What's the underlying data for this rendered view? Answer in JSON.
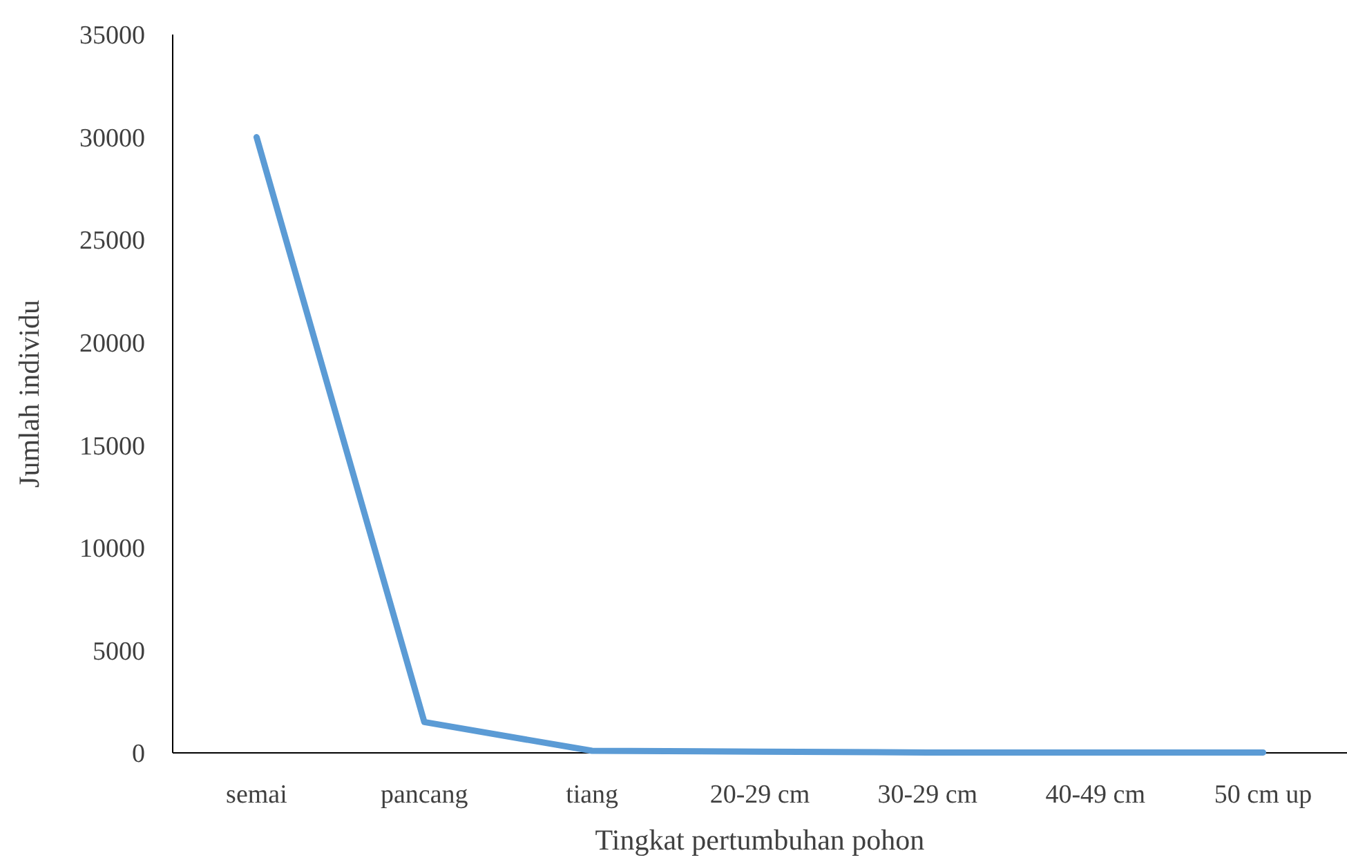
{
  "chart_data": {
    "type": "line",
    "xlabel": "Tingkat pertumbuhan pohon",
    "ylabel": "Jumlah individu",
    "categories": [
      "semai",
      "pancang",
      "tiang",
      "20-29 cm",
      "30-29 cm",
      "40-49 cm",
      "50 cm up"
    ],
    "series": [
      {
        "color": "#5b9bd5",
        "values": [
          30000,
          1500,
          100,
          60,
          20,
          20,
          20
        ]
      }
    ],
    "ylim": [
      0,
      35000
    ],
    "yticks": [
      0,
      5000,
      10000,
      15000,
      20000,
      25000,
      30000,
      35000
    ],
    "grid": false,
    "marker": "none",
    "line_style": "solid"
  }
}
